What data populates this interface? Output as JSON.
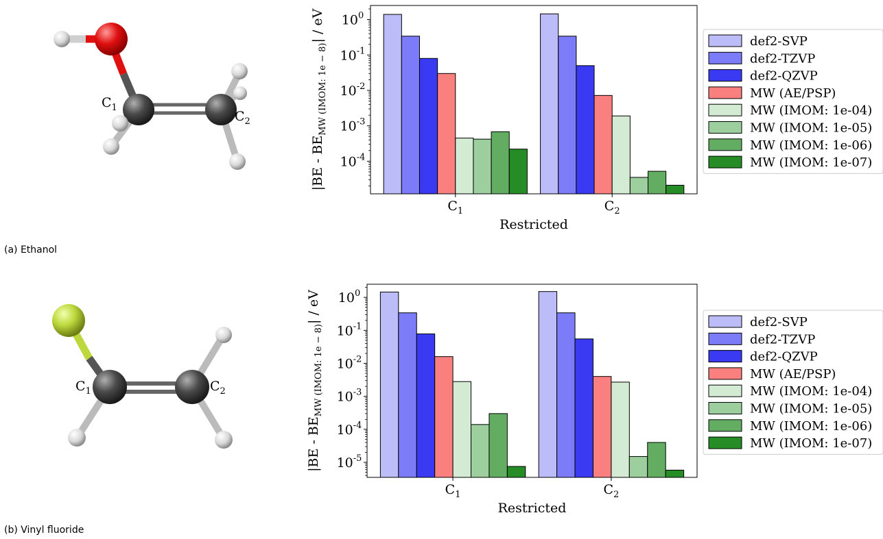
{
  "colors": {
    "def2-SVP": "#bcbcf8",
    "def2-TZVP": "#7c7cf8",
    "def2-QZVP": "#3a3af2",
    "MW (AE/PSP)": "#fa8080",
    "MW (IMOM: 1e-04)": "#d3ead3",
    "MW (IMOM: 1e-05)": "#9dce9d",
    "MW (IMOM: 1e-06)": "#63ad63",
    "MW (IMOM: 1e-07)": "#268c26"
  },
  "panels": [
    {
      "caption": "(a) Ethanol",
      "molecule": {
        "label_c1": "C",
        "label_c1_sub": "1",
        "label_c2": "C",
        "label_c2_sub": "2",
        "heteroatom_color": "#e01010"
      },
      "chart_data": {
        "type": "bar",
        "yscale": "log",
        "ylim": [
          1.2e-05,
          2.5
        ],
        "ylabel": "|BE - BE",
        "ylabel_sub": "MW (IMOM: 1e − 8)",
        "ylabel_tail": "| / eV",
        "xlabel": "Restricted",
        "yticks": [
          {
            "base": "10",
            "exp": "0",
            "value": 1
          },
          {
            "base": "10",
            "exp": "-1",
            "value": 0.1
          },
          {
            "base": "10",
            "exp": "-2",
            "value": 0.01
          },
          {
            "base": "10",
            "exp": "-3",
            "value": 0.001
          },
          {
            "base": "10",
            "exp": "-4",
            "value": 0.0001
          }
        ],
        "categories": [
          {
            "label": "C",
            "sub": "1"
          },
          {
            "label": "C",
            "sub": "2"
          }
        ],
        "series": [
          {
            "name": "def2-SVP",
            "values": [
              1.4,
              1.45
            ]
          },
          {
            "name": "def2-TZVP",
            "values": [
              0.34,
              0.34
            ]
          },
          {
            "name": "def2-QZVP",
            "values": [
              0.08,
              0.05
            ]
          },
          {
            "name": "MW (AE/PSP)",
            "values": [
              0.03,
              0.0072
            ]
          },
          {
            "name": "MW (IMOM: 1e-04)",
            "values": [
              0.00045,
              0.0019
            ]
          },
          {
            "name": "MW (IMOM: 1e-05)",
            "values": [
              0.00042,
              3.5e-05
            ]
          },
          {
            "name": "MW (IMOM: 1e-06)",
            "values": [
              0.00068,
              5.2e-05
            ]
          },
          {
            "name": "MW (IMOM: 1e-07)",
            "values": [
              0.00022,
              2.1e-05
            ]
          }
        ],
        "legend_position": "right"
      }
    },
    {
      "caption": "(b) Vinyl fluoride",
      "molecule": {
        "label_c1": "C",
        "label_c1_sub": "1",
        "label_c2": "C",
        "label_c2_sub": "2",
        "heteroatom_color": "#bcd83c"
      },
      "chart_data": {
        "type": "bar",
        "yscale": "log",
        "ylim": [
          3.5e-06,
          2.5
        ],
        "ylabel": "|BE - BE",
        "ylabel_sub": "MW (IMOM: 1e − 8)",
        "ylabel_tail": "| / eV",
        "xlabel": "Restricted",
        "yticks": [
          {
            "base": "10",
            "exp": "0",
            "value": 1
          },
          {
            "base": "10",
            "exp": "-1",
            "value": 0.1
          },
          {
            "base": "10",
            "exp": "-2",
            "value": 0.01
          },
          {
            "base": "10",
            "exp": "-3",
            "value": 0.001
          },
          {
            "base": "10",
            "exp": "-4",
            "value": 0.0001
          },
          {
            "base": "10",
            "exp": "-5",
            "value": 1e-05
          }
        ],
        "categories": [
          {
            "label": "C",
            "sub": "1"
          },
          {
            "label": "C",
            "sub": "2"
          }
        ],
        "series": [
          {
            "name": "def2-SVP",
            "values": [
              1.45,
              1.5
            ]
          },
          {
            "name": "def2-TZVP",
            "values": [
              0.34,
              0.34
            ]
          },
          {
            "name": "def2-QZVP",
            "values": [
              0.078,
              0.055
            ]
          },
          {
            "name": "MW (AE/PSP)",
            "values": [
              0.016,
              0.004
            ]
          },
          {
            "name": "MW (IMOM: 1e-04)",
            "values": [
              0.0028,
              0.0027
            ]
          },
          {
            "name": "MW (IMOM: 1e-05)",
            "values": [
              0.00014,
              1.5e-05
            ]
          },
          {
            "name": "MW (IMOM: 1e-06)",
            "values": [
              0.0003,
              4e-05
            ]
          },
          {
            "name": "MW (IMOM: 1e-07)",
            "values": [
              7.5e-06,
              5.8e-06
            ]
          }
        ],
        "legend_position": "right"
      }
    }
  ]
}
